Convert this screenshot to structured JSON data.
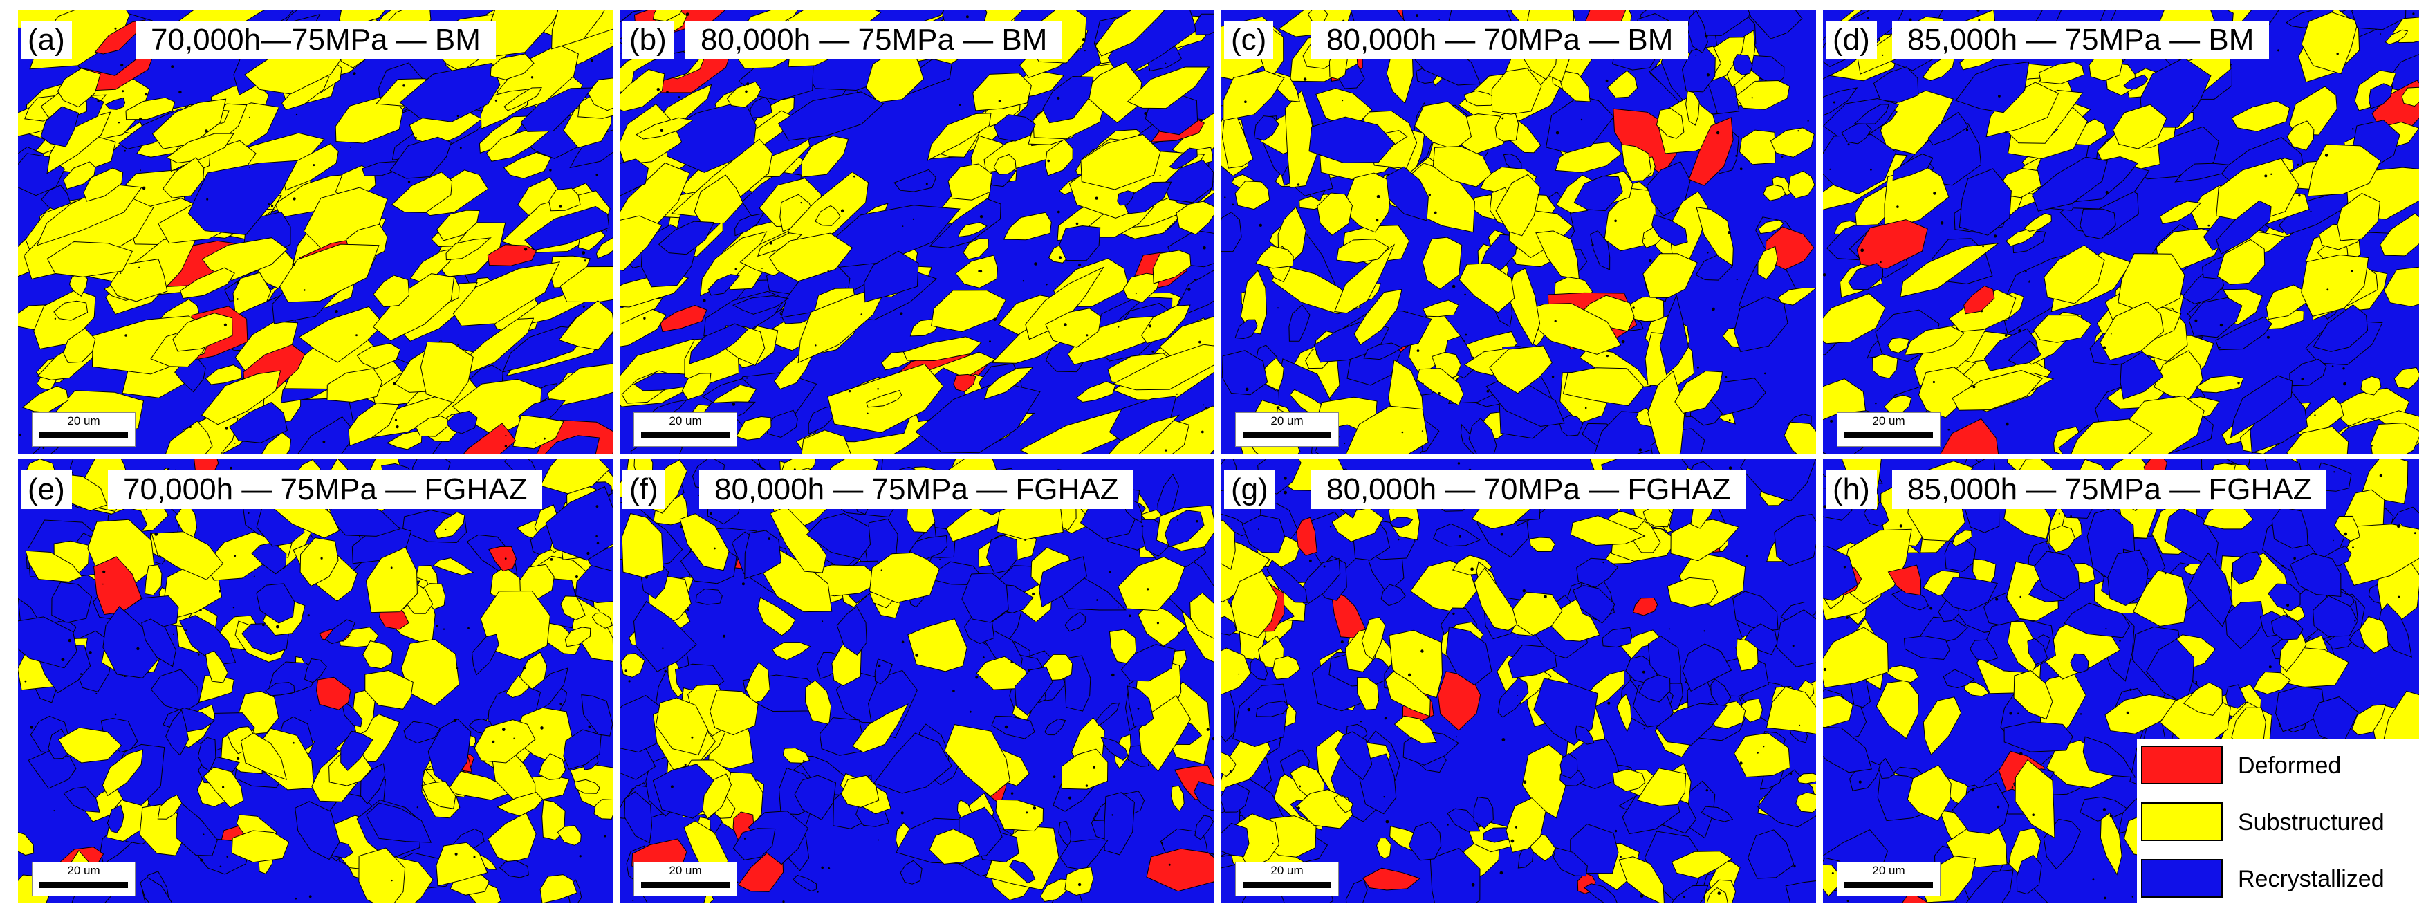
{
  "colors": {
    "deformed": "#ff1a1a",
    "substructured": "#ffff00",
    "recrystallized": "#1010e8",
    "boundary": "#000000"
  },
  "scale_bar_label": "20 um",
  "panels": [
    {
      "letter": "(a)",
      "title": "70,000h—75MPa — BM"
    },
    {
      "letter": "(b)",
      "title": "80,000h — 75MPa — BM"
    },
    {
      "letter": "(c)",
      "title": "80,000h — 70MPa — BM"
    },
    {
      "letter": "(d)",
      "title": "85,000h — 75MPa — BM"
    },
    {
      "letter": "(e)",
      "title": "70,000h — 75MPa — FGHAZ"
    },
    {
      "letter": "(f)",
      "title": "80,000h — 75MPa — FGHAZ"
    },
    {
      "letter": "(g)",
      "title": "80,000h — 70MPa — FGHAZ"
    },
    {
      "letter": "(h)",
      "title": "85,000h — 75MPa — FGHAZ"
    }
  ],
  "legend": [
    {
      "label": "Deformed",
      "color": "#ff1a1a"
    },
    {
      "label": "Substructured",
      "color": "#ffff00"
    },
    {
      "label": "Recrystallized",
      "color": "#1010e8"
    }
  ]
}
